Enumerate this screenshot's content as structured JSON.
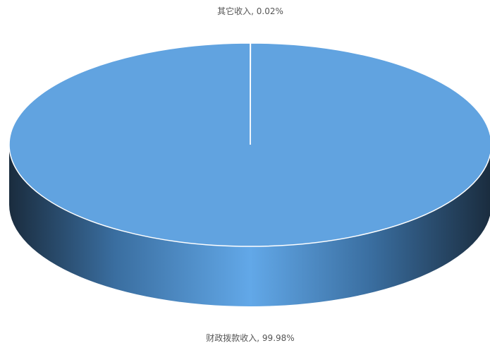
{
  "chart_data": {
    "type": "pie",
    "title": "",
    "slices": [
      {
        "label": "其它收入",
        "value": 0.02,
        "display": "0.02%"
      },
      {
        "label": "财政拨款收入",
        "value": 99.98,
        "display": "99.98%"
      }
    ],
    "slice_color": "#61a3e0",
    "side_colors": {
      "dark": "#1a2c3e",
      "mid": "#3a6ea0",
      "light": "#62a8e8"
    },
    "separator_color": "#ffffff",
    "label_color": "#555555",
    "style": "3d"
  }
}
